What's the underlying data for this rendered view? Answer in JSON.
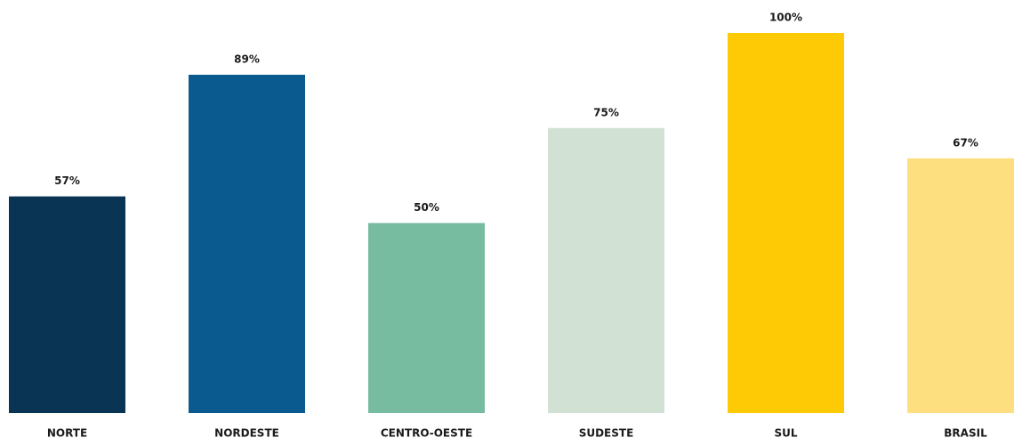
{
  "chart_data": {
    "type": "bar",
    "categories": [
      "NORTE",
      "NORDESTE",
      "CENTRO-OESTE",
      "SUDESTE",
      "SUL",
      "BRASIL"
    ],
    "values": [
      57,
      89,
      50,
      75,
      100,
      67
    ],
    "value_labels": [
      "57%",
      "89%",
      "50%",
      "75%",
      "100%",
      "67%"
    ],
    "colors": [
      "#0a3454",
      "#0a5a90",
      "#77bca1",
      "#d1e2d5",
      "#fdca05",
      "#fddf7f"
    ],
    "ylim": [
      0,
      100
    ]
  }
}
